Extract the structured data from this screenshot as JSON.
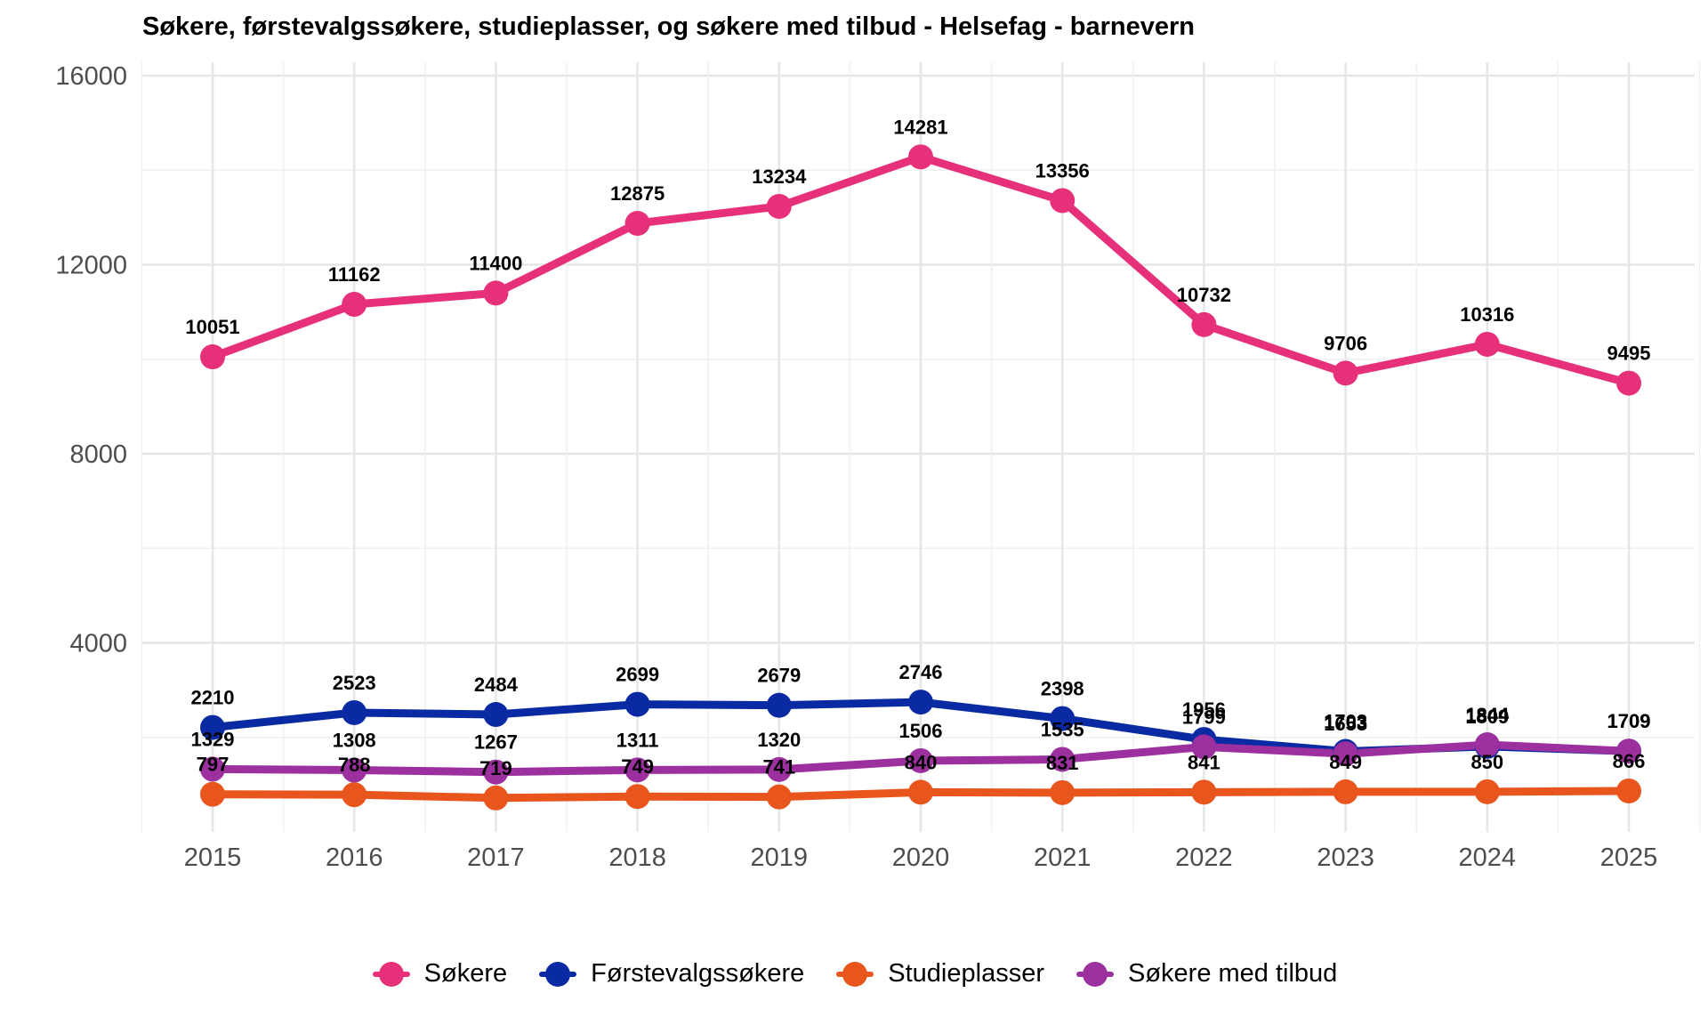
{
  "chart_data": {
    "type": "line",
    "title": "Søkere, førstevalgssøkere, studieplasser, og søkere med tilbud - Helsefag - barnevern",
    "xlabel": "",
    "ylabel": "",
    "ylim": [
      0,
      16000
    ],
    "yticks": [
      4000,
      8000,
      12000,
      16000
    ],
    "x": [
      2015,
      2016,
      2017,
      2018,
      2019,
      2020,
      2021,
      2022,
      2023,
      2024,
      2025
    ],
    "grid": true,
    "legend_position": "bottom",
    "series": [
      {
        "name": "Søkere",
        "color": "#E7307A",
        "values": [
          10051,
          11162,
          11400,
          12875,
          13234,
          14281,
          13356,
          10732,
          9706,
          10316,
          9495
        ]
      },
      {
        "name": "Førstevalgssøkere",
        "color": "#0A2AA3",
        "values": [
          2210,
          2523,
          2484,
          2699,
          2679,
          2746,
          2398,
          1956,
          1703,
          1809,
          1709
        ]
      },
      {
        "name": "Studieplasser",
        "color": "#E8561E",
        "values": [
          797,
          788,
          719,
          749,
          741,
          840,
          831,
          841,
          849,
          850,
          866
        ]
      },
      {
        "name": "Søkere med tilbud",
        "color": "#9B309E",
        "values": [
          1329,
          1308,
          1267,
          1311,
          1320,
          1506,
          1535,
          1799,
          1653,
          1844,
          1709
        ]
      }
    ]
  }
}
